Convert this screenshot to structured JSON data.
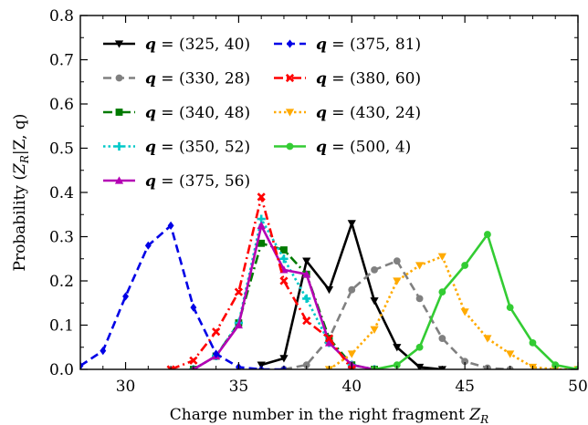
{
  "chart_data": {
    "type": "line",
    "xlabel": "Charge number in the right fragment Z_R",
    "ylabel": "Probability (Z_R|Z, q)",
    "xlim": [
      28,
      50
    ],
    "ylim": [
      0,
      0.8
    ],
    "xticks": [
      30,
      35,
      40,
      45,
      50
    ],
    "yticks": [
      0.0,
      0.1,
      0.2,
      0.3,
      0.4,
      0.5,
      0.6,
      0.7,
      0.8
    ],
    "xtick_labels": [
      "30",
      "35",
      "40",
      "45",
      "50"
    ],
    "ytick_labels": [
      "0.0",
      "0.1",
      "0.2",
      "0.3",
      "0.4",
      "0.5",
      "0.6",
      "0.7",
      "0.8"
    ],
    "grid": false,
    "legend_position": "top-left, two columns",
    "series": [
      {
        "name": "q = (325, 40)",
        "color": "#000000",
        "dash": "solid",
        "marker": "triangle-down",
        "x": [
          36,
          37,
          38,
          39,
          40,
          41,
          42,
          43,
          44
        ],
        "y": [
          0.01,
          0.025,
          0.245,
          0.18,
          0.33,
          0.155,
          0.05,
          0.005,
          0.0
        ]
      },
      {
        "name": "q = (330, 28)",
        "color": "#808080",
        "dash": "dashed",
        "marker": "circle",
        "x": [
          37,
          38,
          39,
          40,
          41,
          42,
          43,
          44,
          45,
          46,
          47
        ],
        "y": [
          0.0,
          0.01,
          0.07,
          0.18,
          0.225,
          0.245,
          0.16,
          0.07,
          0.018,
          0.003,
          0.0
        ]
      },
      {
        "name": "q = (340, 48)",
        "color": "#007a00",
        "dash": "dash-dot",
        "marker": "square",
        "x": [
          33,
          34,
          35,
          36,
          37,
          38,
          39,
          40,
          41
        ],
        "y": [
          0.0,
          0.03,
          0.105,
          0.285,
          0.27,
          0.215,
          0.07,
          0.01,
          0.0
        ]
      },
      {
        "name": "q = (350, 52)",
        "color": "#00c8c8",
        "dash": "dotted",
        "marker": "plus",
        "x": [
          33,
          34,
          35,
          36,
          37,
          38,
          39,
          40,
          41
        ],
        "y": [
          0.0,
          0.03,
          0.105,
          0.34,
          0.25,
          0.16,
          0.06,
          0.01,
          0.0
        ]
      },
      {
        "name": "q = (375, 56)",
        "color": "#b400b4",
        "dash": "solid",
        "marker": "triangle-up",
        "x": [
          33,
          34,
          35,
          36,
          37,
          38,
          39,
          40,
          41
        ],
        "y": [
          0.0,
          0.03,
          0.1,
          0.325,
          0.225,
          0.215,
          0.06,
          0.01,
          0.0
        ]
      },
      {
        "name": "q = (375, 81)",
        "color": "#0000e6",
        "dash": "dashed",
        "marker": "diamond",
        "x": [
          28,
          29,
          30,
          31,
          32,
          33,
          34,
          35,
          36,
          37
        ],
        "y": [
          0.008,
          0.042,
          0.165,
          0.28,
          0.325,
          0.14,
          0.035,
          0.005,
          0.0,
          0.0
        ]
      },
      {
        "name": "q = (380, 60)",
        "color": "#ff0000",
        "dash": "dash-dot",
        "marker": "x",
        "x": [
          32,
          33,
          34,
          35,
          36,
          37,
          38,
          39,
          40
        ],
        "y": [
          0.0,
          0.02,
          0.085,
          0.175,
          0.39,
          0.2,
          0.11,
          0.07,
          0.0
        ]
      },
      {
        "name": "q = (430, 24)",
        "color": "#ffaa00",
        "dash": "dotted",
        "marker": "triangle-down",
        "x": [
          39,
          40,
          41,
          42,
          43,
          44,
          45,
          46,
          47,
          48,
          49,
          50
        ],
        "y": [
          0.0,
          0.035,
          0.09,
          0.2,
          0.235,
          0.255,
          0.13,
          0.07,
          0.035,
          0.005,
          0.0,
          0.0
        ]
      },
      {
        "name": "q = (500, 4)",
        "color": "#33cc33",
        "dash": "solid",
        "marker": "circle",
        "x": [
          41,
          42,
          43,
          44,
          45,
          46,
          47,
          48,
          49,
          50
        ],
        "y": [
          0.0,
          0.01,
          0.05,
          0.175,
          0.235,
          0.305,
          0.14,
          0.06,
          0.01,
          0.0
        ]
      }
    ]
  }
}
